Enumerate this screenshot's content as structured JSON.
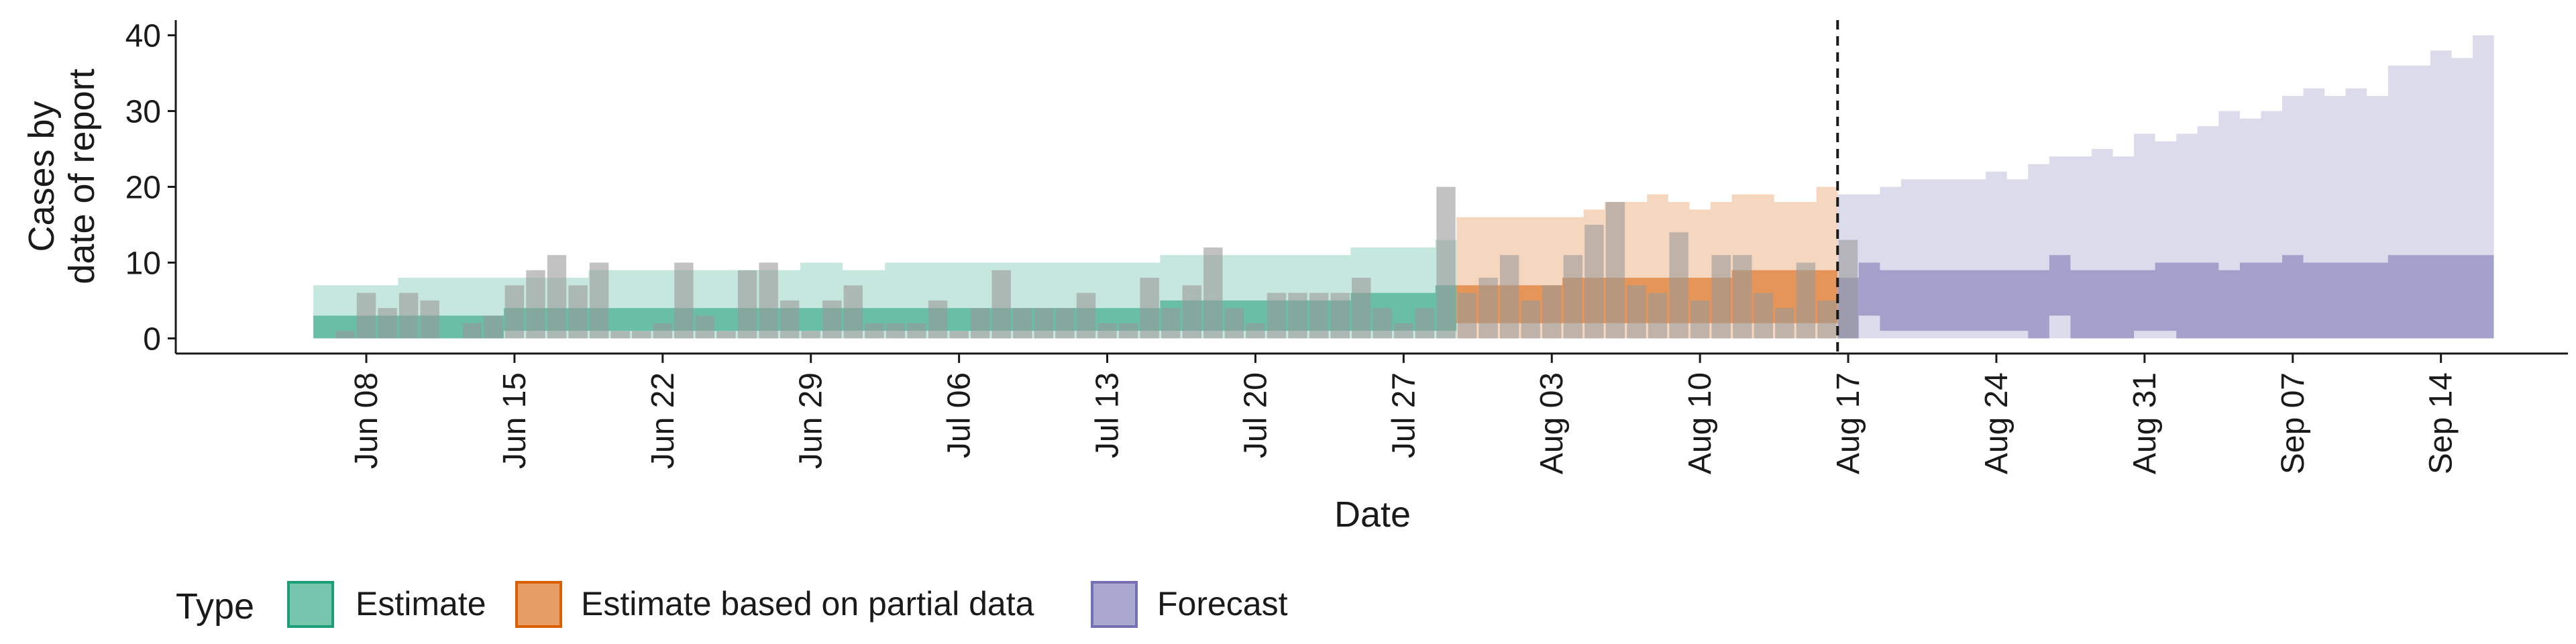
{
  "chart_data": {
    "type": "bar",
    "xlabel": "Date",
    "ylabel_lines": [
      "Cases by",
      "date of report"
    ],
    "x_tick_labels": [
      "Jun 08",
      "Jun 15",
      "Jun 22",
      "Jun 29",
      "Jul 06",
      "Jul 13",
      "Jul 20",
      "Jul 27",
      "Aug 03",
      "Aug 10",
      "Aug 17",
      "Aug 24",
      "Aug 31",
      "Sep 07",
      "Sep 14"
    ],
    "x_tick_dates": [
      "2020-06-08",
      "2020-06-15",
      "2020-06-22",
      "2020-06-29",
      "2020-07-06",
      "2020-07-13",
      "2020-07-20",
      "2020-07-27",
      "2020-08-03",
      "2020-08-10",
      "2020-08-17",
      "2020-08-24",
      "2020-08-31",
      "2020-09-07",
      "2020-09-14"
    ],
    "y_tick_labels": [
      "0",
      "10",
      "20",
      "30",
      "40"
    ],
    "y_ticks": [
      0,
      10,
      20,
      30,
      40
    ],
    "ylim": [
      -2,
      42
    ],
    "xlim": [
      "2020-05-30",
      "2020-09-20"
    ],
    "grid": false,
    "forecast_start_line": "2020-08-16",
    "legend": {
      "title": "Type",
      "position": "bottom",
      "items": [
        {
          "label": "Estimate",
          "color": "#1b9e77"
        },
        {
          "label": "Estimate based on partial data",
          "color": "#d95f02"
        },
        {
          "label": "Forecast",
          "color": "#7570b3"
        }
      ]
    },
    "bars": {
      "start": "2020-06-07",
      "color": "#999999",
      "values": [
        1,
        6,
        4,
        6,
        5,
        0,
        2,
        3,
        7,
        9,
        11,
        7,
        10,
        1,
        1,
        2,
        10,
        3,
        1,
        9,
        10,
        5,
        1,
        5,
        7,
        2,
        2,
        2,
        5,
        1,
        4,
        9,
        4,
        4,
        4,
        6,
        2,
        2,
        8,
        4,
        7,
        12,
        4,
        2,
        6,
        6,
        6,
        6,
        8,
        4,
        2,
        4,
        20,
        6,
        8,
        11,
        5,
        7,
        11,
        15,
        18,
        7,
        6,
        14,
        5,
        11,
        11,
        6,
        4,
        10,
        5,
        13
      ]
    },
    "series": [
      {
        "name": "Estimate",
        "color": "#1b9e77",
        "start": "2020-06-06",
        "outer_lower": [
          0,
          0,
          0,
          0,
          0,
          0,
          0,
          0,
          0,
          0,
          0,
          0,
          0,
          0,
          0,
          0,
          0,
          0,
          0,
          0,
          0,
          0,
          0,
          0,
          0,
          0,
          0,
          0,
          0,
          0,
          0,
          0,
          0,
          0,
          0,
          0,
          0,
          0,
          0,
          0,
          0,
          0,
          0,
          0,
          0,
          0,
          0,
          0,
          0,
          0,
          0,
          0,
          0,
          0
        ],
        "outer_upper": [
          7,
          7,
          7,
          7,
          8,
          8,
          8,
          8,
          8,
          8,
          8,
          8,
          8,
          9,
          9,
          9,
          9,
          9,
          9,
          9,
          9,
          9,
          9,
          10,
          10,
          9,
          9,
          10,
          10,
          10,
          10,
          10,
          10,
          10,
          10,
          10,
          10,
          10,
          10,
          10,
          11,
          11,
          11,
          11,
          11,
          11,
          11,
          11,
          11,
          12,
          12,
          12,
          12,
          13
        ],
        "inner_lower": [
          0,
          0,
          0,
          0,
          0,
          0,
          0,
          0,
          0,
          1,
          1,
          1,
          1,
          1,
          1,
          1,
          1,
          1,
          1,
          1,
          1,
          1,
          1,
          1,
          1,
          1,
          1,
          1,
          1,
          1,
          1,
          1,
          1,
          1,
          1,
          1,
          1,
          1,
          1,
          1,
          1,
          1,
          1,
          1,
          1,
          1,
          1,
          1,
          1,
          1,
          1,
          1,
          1,
          1
        ],
        "inner_upper": [
          3,
          3,
          3,
          3,
          3,
          3,
          3,
          3,
          3,
          4,
          4,
          4,
          4,
          4,
          4,
          4,
          4,
          4,
          4,
          4,
          4,
          4,
          4,
          4,
          4,
          4,
          4,
          4,
          4,
          4,
          4,
          4,
          4,
          4,
          4,
          4,
          4,
          4,
          4,
          4,
          5,
          5,
          5,
          5,
          5,
          5,
          5,
          5,
          5,
          6,
          6,
          6,
          6,
          7
        ]
      },
      {
        "name": "Estimate based on partial data",
        "color": "#d95f02",
        "start": "2020-07-30",
        "outer_lower": [
          0,
          0,
          0,
          0,
          0,
          0,
          0,
          0,
          0,
          0,
          0,
          0,
          0,
          0,
          0,
          0,
          0,
          0
        ],
        "outer_upper": [
          16,
          16,
          16,
          16,
          16,
          16,
          17,
          18,
          18,
          19,
          18,
          17,
          18,
          19,
          19,
          18,
          18,
          20
        ],
        "inner_lower": [
          2,
          2,
          2,
          2,
          2,
          2,
          2,
          2,
          2,
          2,
          2,
          2,
          2,
          2,
          2,
          2,
          2,
          2
        ],
        "inner_upper": [
          7,
          7,
          7,
          7,
          7,
          8,
          8,
          8,
          8,
          8,
          8,
          8,
          8,
          9,
          9,
          9,
          9,
          9
        ]
      },
      {
        "name": "Forecast",
        "color": "#7570b3",
        "start": "2020-08-17",
        "outer_lower": [
          0,
          0,
          0,
          0,
          0,
          0,
          0,
          0,
          0,
          0,
          0,
          0,
          0,
          0,
          0,
          0,
          0,
          0,
          0,
          0,
          0,
          0,
          0,
          0,
          0,
          0,
          0,
          0,
          0,
          0,
          0
        ],
        "outer_upper": [
          19,
          19,
          20,
          21,
          21,
          21,
          21,
          22,
          21,
          23,
          24,
          24,
          25,
          24,
          27,
          26,
          27,
          28,
          30,
          29,
          30,
          32,
          33,
          32,
          33,
          32,
          36,
          36,
          38,
          37,
          40
        ],
        "inner_lower": [
          0,
          3,
          1,
          1,
          1,
          1,
          1,
          1,
          1,
          0,
          3,
          0,
          0,
          0,
          1,
          1,
          0,
          0,
          0,
          0,
          0,
          0,
          0,
          0,
          0,
          0,
          0,
          0,
          0,
          0,
          0
        ],
        "inner_upper": [
          8,
          10,
          9,
          9,
          9,
          9,
          9,
          9,
          9,
          9,
          11,
          9,
          9,
          9,
          9,
          10,
          10,
          10,
          9,
          10,
          10,
          11,
          10,
          10,
          10,
          10,
          11,
          11,
          11,
          11,
          11
        ]
      }
    ]
  }
}
